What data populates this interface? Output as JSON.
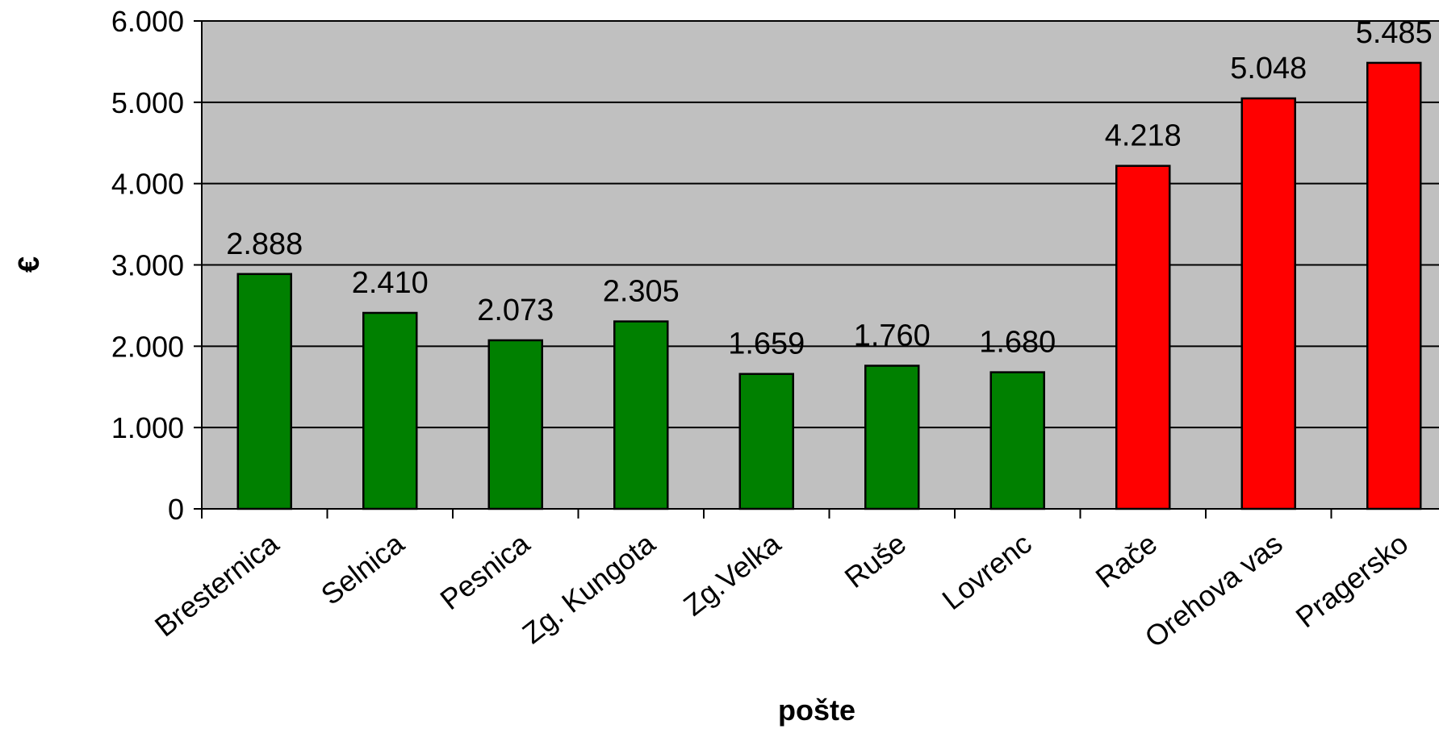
{
  "chart_data": {
    "type": "bar",
    "categories": [
      "Bresternica",
      "Selnica",
      "Pesnica",
      "Zg. Kungota",
      "Zg.Velka",
      "Ruše",
      "Lovrenc",
      "Rače",
      "Orehova vas",
      "Pragersko"
    ],
    "values": [
      2888,
      2410,
      2073,
      2305,
      1659,
      1760,
      1680,
      4218,
      5048,
      5485
    ],
    "data_labels": [
      "2.888",
      "2.410",
      "2.073",
      "2.305",
      "1.659",
      "1.760",
      "1.680",
      "4.218",
      "5.048",
      "5.485"
    ],
    "bar_colors": [
      "#008000",
      "#008000",
      "#008000",
      "#008000",
      "#008000",
      "#008000",
      "#008000",
      "#ff0000",
      "#ff0000",
      "#ff0000"
    ],
    "xlabel": "pošte",
    "ylabel": "€",
    "ylim": [
      0,
      6000
    ],
    "yticks": [
      0,
      1000,
      2000,
      3000,
      4000,
      5000,
      6000
    ],
    "ytick_labels": [
      "0",
      "1.000",
      "2.000",
      "3.000",
      "4.000",
      "5.000",
      "6.000"
    ],
    "grid": true,
    "plot_background": "#c0c0c0",
    "legend": "none"
  }
}
